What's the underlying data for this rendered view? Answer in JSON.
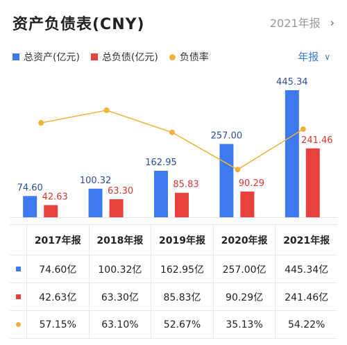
{
  "header": {
    "title": "资产负债表(CNY)",
    "report_label": "2021年报",
    "chevron": "›"
  },
  "legend": [
    {
      "label": "总资产(亿元)",
      "color": "#3d7af0",
      "shape": "square"
    },
    {
      "label": "总负债(亿元)",
      "color": "#e8403c",
      "shape": "square"
    },
    {
      "label": "负债率",
      "color": "#f0b23a",
      "shape": "dot"
    }
  ],
  "period_selector": {
    "label": "年报",
    "caret": "∨"
  },
  "chart_data": {
    "type": "bar",
    "categories": [
      "2017年报",
      "2018年报",
      "2019年报",
      "2020年报",
      "2021年报"
    ],
    "series": [
      {
        "name": "总资产(亿元)",
        "values": [
          74.6,
          100.32,
          162.95,
          257.0,
          445.34
        ],
        "color": "#3d7af0",
        "labels": [
          "74.60",
          "100.32",
          "162.95",
          "257.00",
          "445.34"
        ]
      },
      {
        "name": "总负债(亿元)",
        "values": [
          42.63,
          63.3,
          85.83,
          90.29,
          241.46
        ],
        "color": "#e8403c",
        "labels": [
          "42.63",
          "63.30",
          "85.83",
          "90.29",
          "241.46"
        ]
      },
      {
        "name": "负债率",
        "values": [
          57.15,
          63.1,
          52.67,
          35.13,
          54.22
        ],
        "color": "#f0b23a",
        "type": "line"
      }
    ],
    "ylim": [
      0,
      445.34
    ],
    "legend_position": "top-left"
  },
  "table": {
    "headers": [
      "2017年报",
      "2018年报",
      "2019年报",
      "2020年报",
      "2021年报"
    ],
    "rows": [
      {
        "marker": "square",
        "color": "#3d7af0",
        "cells": [
          "74.60亿",
          "100.32亿",
          "162.95亿",
          "257.00亿",
          "445.34亿"
        ]
      },
      {
        "marker": "square",
        "color": "#e8403c",
        "cells": [
          "42.63亿",
          "63.30亿",
          "85.83亿",
          "90.29亿",
          "241.46亿"
        ]
      },
      {
        "marker": "dot",
        "color": "#f0b23a",
        "cells": [
          "57.15%",
          "63.10%",
          "52.67%",
          "35.13%",
          "54.22%"
        ]
      }
    ]
  }
}
